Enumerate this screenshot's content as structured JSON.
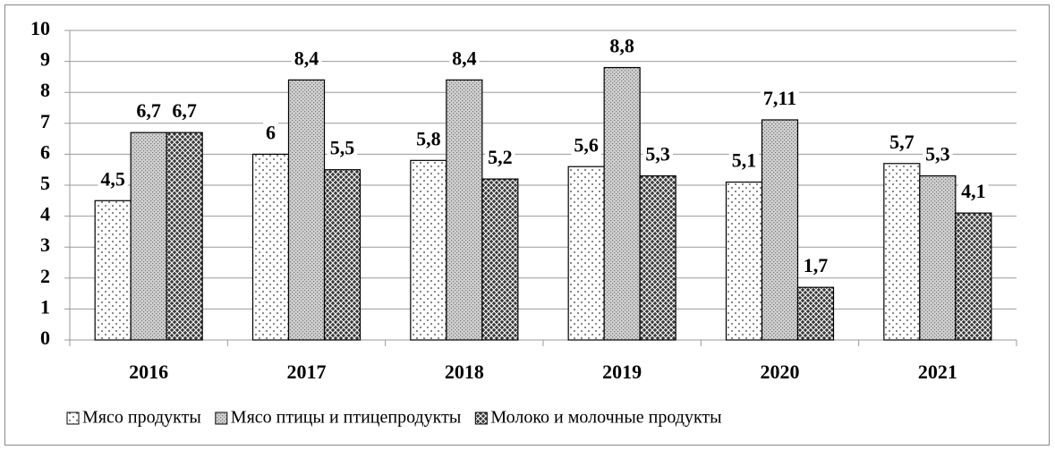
{
  "chart_data": {
    "type": "bar",
    "categories": [
      "2016",
      "2017",
      "2018",
      "2019",
      "2020",
      "2021"
    ],
    "series": [
      {
        "name": "Мясо продукты",
        "color": "#ffffff",
        "values": [
          4.5,
          6,
          5.8,
          5.6,
          5.1,
          5.7
        ],
        "value_labels": [
          "4,5",
          "6",
          "5,8",
          "5,6",
          "5,1",
          "5,7"
        ]
      },
      {
        "name": "Мясо птицы и птицепродукты",
        "color": "#d0d0d0",
        "values": [
          6.7,
          8.4,
          8.4,
          8.8,
          7.11,
          5.3
        ],
        "value_labels": [
          "6,7",
          "8,4",
          "8,4",
          "8,8",
          "7,11",
          "5,3"
        ]
      },
      {
        "name": "Молоко и молочные продукты",
        "color": "#3a3a3a",
        "values": [
          6.7,
          5.5,
          5.2,
          5.3,
          1.7,
          4.1
        ],
        "value_labels": [
          "6,7",
          "5,5",
          "5,2",
          "5,3",
          "1,7",
          "4,1"
        ]
      }
    ],
    "ylim": [
      0,
      10
    ],
    "yticks": [
      0,
      1,
      2,
      3,
      4,
      5,
      6,
      7,
      8,
      9,
      10
    ],
    "grid": true,
    "legend": "bottom"
  }
}
